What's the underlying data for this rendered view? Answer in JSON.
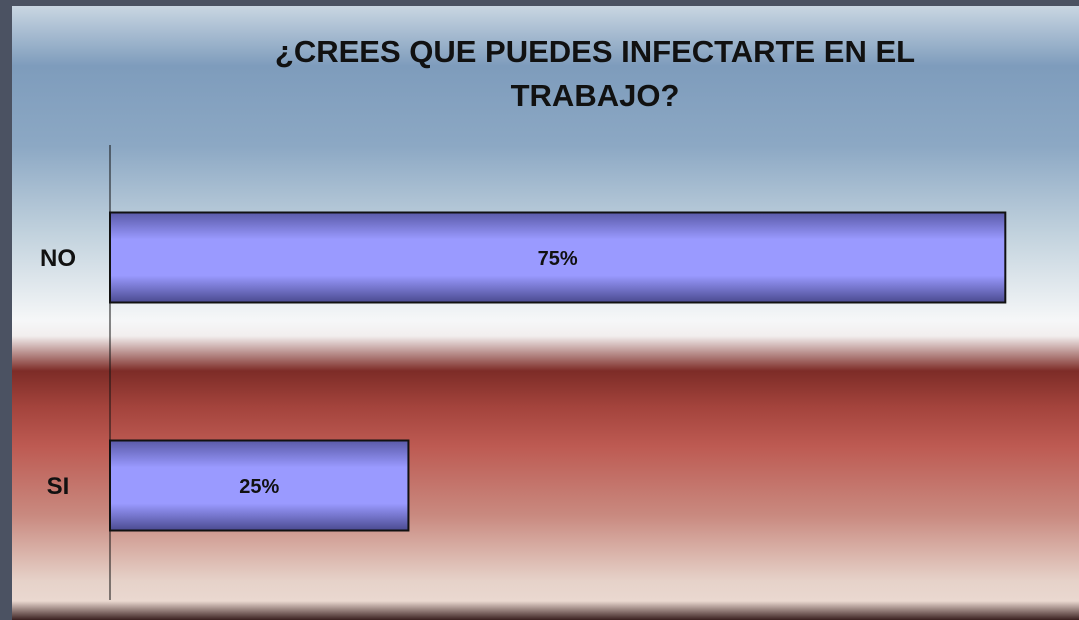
{
  "chart_data": {
    "type": "barh",
    "title": "¿CREES QUE PUEDES INFECTARTE EN EL TRABAJO?",
    "categories": [
      "NO",
      "SI"
    ],
    "values": [
      75,
      25
    ],
    "value_labels": [
      "75%",
      "25%"
    ],
    "color": "#9090ff",
    "xlim": [
      0,
      80
    ]
  }
}
